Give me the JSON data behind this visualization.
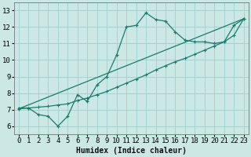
{
  "xlabel": "Humidex (Indice chaleur)",
  "bg_color": "#cce8e5",
  "line_color": "#1a7a6e",
  "xlim": [
    -0.5,
    23.5
  ],
  "ylim": [
    5.5,
    13.5
  ],
  "xticks": [
    0,
    1,
    2,
    3,
    4,
    5,
    6,
    7,
    8,
    9,
    10,
    11,
    12,
    13,
    14,
    15,
    16,
    17,
    18,
    19,
    20,
    21,
    22,
    23
  ],
  "yticks": [
    6,
    7,
    8,
    9,
    10,
    11,
    12,
    13
  ],
  "curve1_x": [
    0,
    1,
    2,
    3,
    4,
    5,
    6,
    7,
    8,
    9,
    10,
    11,
    12,
    13,
    14,
    15,
    16,
    17,
    18,
    19,
    20,
    21,
    22,
    23
  ],
  "curve1_y": [
    7.1,
    7.1,
    6.7,
    6.6,
    6.0,
    6.6,
    7.9,
    7.5,
    8.5,
    9.0,
    10.3,
    12.0,
    12.1,
    12.85,
    12.45,
    12.35,
    11.7,
    11.2,
    11.1,
    11.1,
    11.0,
    11.1,
    12.1,
    12.5
  ],
  "curve2_x": [
    0,
    1,
    2,
    3,
    4,
    5,
    6,
    7,
    8,
    9,
    10,
    11,
    12,
    13,
    14,
    15,
    16,
    17,
    18,
    19,
    20,
    21,
    22,
    23
  ],
  "curve2_y": [
    7.05,
    7.1,
    7.15,
    7.2,
    7.28,
    7.35,
    7.55,
    7.7,
    7.9,
    8.1,
    8.35,
    8.6,
    8.85,
    9.1,
    9.4,
    9.65,
    9.9,
    10.1,
    10.35,
    10.6,
    10.85,
    11.1,
    11.5,
    12.5
  ],
  "curve3_x": [
    0,
    23
  ],
  "curve3_y": [
    7.05,
    12.5
  ],
  "grid_color": "#9ecfcb",
  "label_fontsize": 7,
  "tick_fontsize": 6.5
}
